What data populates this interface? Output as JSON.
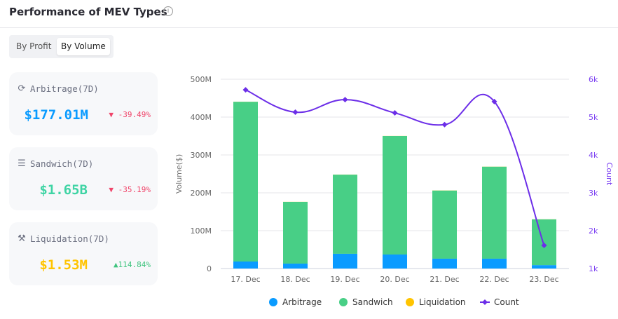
{
  "header": {
    "title": "Performance of MEV Types",
    "info_icon": "info-icon"
  },
  "toggle": {
    "options": [
      "By Profit",
      "By Volume"
    ],
    "selected": "By Volume"
  },
  "cards": [
    {
      "label": "Arbitrage(7D)",
      "icon": "arbitrage-coin-icon",
      "value": "$177.01M",
      "change": "-39.49%",
      "direction": "down",
      "color": "#0a9bff"
    },
    {
      "label": "Sandwich(7D)",
      "icon": "sandwich-icon",
      "value": "$1.65B",
      "change": "-35.19%",
      "direction": "down",
      "color": "#3fd4a4"
    },
    {
      "label": "Liquidation(7D)",
      "icon": "gavel-icon",
      "value": "$1.53M",
      "change": "114.84%",
      "direction": "up",
      "color": "#ffc400"
    }
  ],
  "colors": {
    "up": "#3fc47e",
    "down": "#f0456a"
  },
  "chart_data": {
    "type": "bar",
    "stacked": true,
    "categories": [
      "17. Dec",
      "18. Dec",
      "19. Dec",
      "20. Dec",
      "21. Dec",
      "22. Dec",
      "23. Dec"
    ],
    "series": [
      {
        "name": "Arbitrage",
        "type": "bar",
        "axis": "left",
        "color": "#0a9bff",
        "values": [
          18.5,
          13,
          39,
          37,
          26,
          26,
          9
        ]
      },
      {
        "name": "Sandwich",
        "type": "bar",
        "axis": "left",
        "color": "#48cf86",
        "values": [
          422,
          163,
          209,
          313,
          180,
          243,
          121
        ]
      },
      {
        "name": "Liquidation",
        "type": "bar",
        "axis": "left",
        "color": "#ffc400",
        "values": [
          0.2,
          0.2,
          0.2,
          0.2,
          0.3,
          0.2,
          0.2
        ]
      },
      {
        "name": "Count",
        "type": "line",
        "axis": "right",
        "color": "#6c2ee8",
        "values": [
          5720,
          5130,
          5460,
          5110,
          4800,
          5410,
          1610
        ]
      }
    ],
    "ylabel": "Volume($)",
    "y2label": "Count",
    "ylim": [
      0,
      500
    ],
    "y2lim": [
      1000,
      6000
    ],
    "yticks": [
      "0",
      "100M",
      "200M",
      "300M",
      "400M",
      "500M"
    ],
    "y2ticks": [
      "1k",
      "2k",
      "3k",
      "4k",
      "5k",
      "6k"
    ],
    "grid": true,
    "legend": "bottom"
  }
}
